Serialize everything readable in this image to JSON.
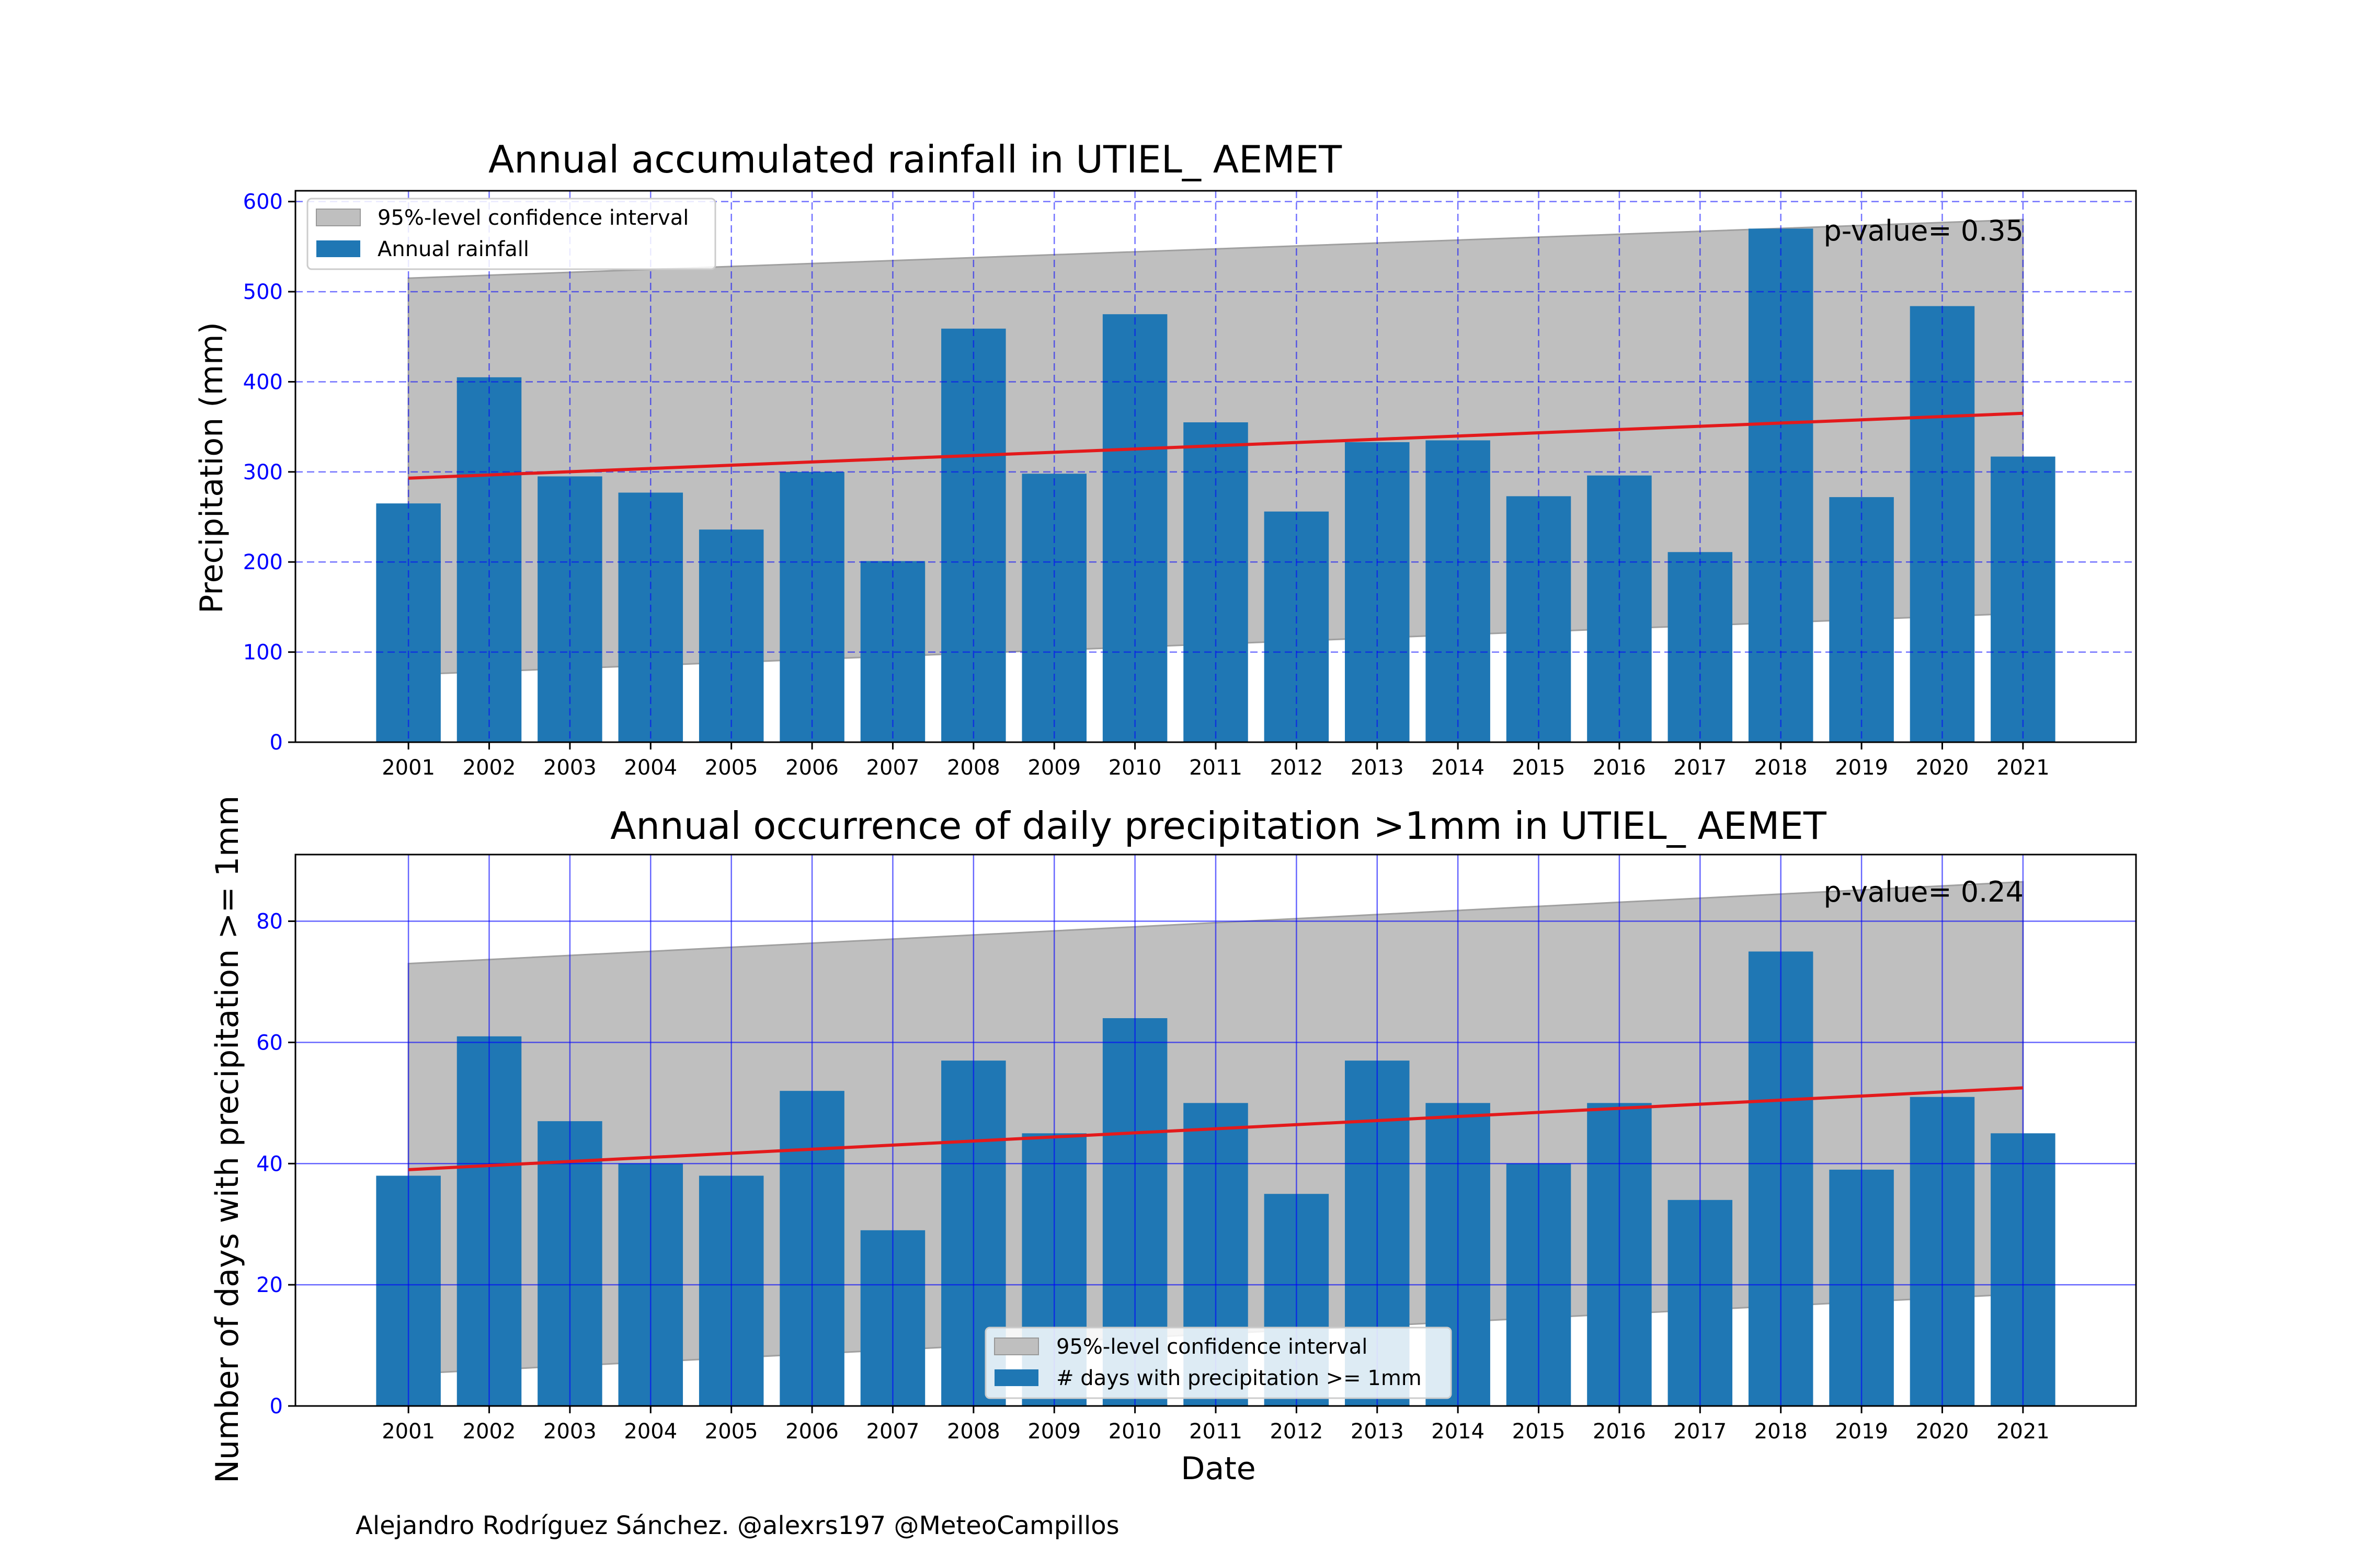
{
  "credit": "Alejandro Rodríguez Sánchez. @alexrs197 @MeteoCampillos",
  "colors": {
    "bar": "#1f77b4",
    "band": "#bfbfbf",
    "trend": "#e31a1c",
    "grid": "#0000ff",
    "yticks": "#0000ff"
  },
  "chart_data": [
    {
      "type": "bar",
      "title": "Annual accumulated rainfall in UTIEL_ AEMET",
      "xlabel": "",
      "ylabel": "Precipitation (mm)",
      "ylim": [
        0,
        612
      ],
      "yticks": [
        "0",
        "100",
        "200",
        "300",
        "400",
        "500",
        "600"
      ],
      "grid": "dashed",
      "legend_position": "top-left",
      "legend": [
        "95%-level confidence interval",
        "Annual rainfall"
      ],
      "annotation": "p-value= 0.35",
      "categories": [
        "2001",
        "2002",
        "2003",
        "2004",
        "2005",
        "2006",
        "2007",
        "2008",
        "2009",
        "2010",
        "2011",
        "2012",
        "2013",
        "2014",
        "2015",
        "2016",
        "2017",
        "2018",
        "2019",
        "2020",
        "2021"
      ],
      "values": [
        265,
        405,
        295,
        277,
        236,
        300,
        201,
        459,
        298,
        475,
        355,
        256,
        333,
        335,
        273,
        296,
        211,
        570,
        272,
        484,
        317
      ],
      "trend": {
        "start": 293,
        "end": 365
      },
      "confidence_band": {
        "upper_start": 515,
        "upper_end": 580,
        "lower_start": 75,
        "lower_end": 143
      }
    },
    {
      "type": "bar",
      "title": "Annual occurrence of daily precipitation >1mm in UTIEL_ AEMET",
      "xlabel": "Date",
      "ylabel": "Number of days with precipitation >= 1mm",
      "ylim": [
        0,
        91
      ],
      "yticks": [
        "0",
        "20",
        "40",
        "60",
        "80"
      ],
      "grid": "solid",
      "legend_position": "lower-center",
      "legend": [
        "95%-level confidence interval",
        "# days with precipitation >= 1mm"
      ],
      "annotation": "p-value= 0.24",
      "categories": [
        "2001",
        "2002",
        "2003",
        "2004",
        "2005",
        "2006",
        "2007",
        "2008",
        "2009",
        "2010",
        "2011",
        "2012",
        "2013",
        "2014",
        "2015",
        "2016",
        "2017",
        "2018",
        "2019",
        "2020",
        "2021"
      ],
      "values": [
        38,
        61,
        47,
        40,
        38,
        52,
        29,
        57,
        45,
        64,
        50,
        35,
        57,
        50,
        40,
        50,
        34,
        75,
        39,
        51,
        45
      ],
      "trend": {
        "start": 39,
        "end": 52.5
      },
      "confidence_band": {
        "upper_start": 73,
        "upper_end": 86.5,
        "lower_start": 5.3,
        "lower_end": 18.5
      }
    }
  ]
}
